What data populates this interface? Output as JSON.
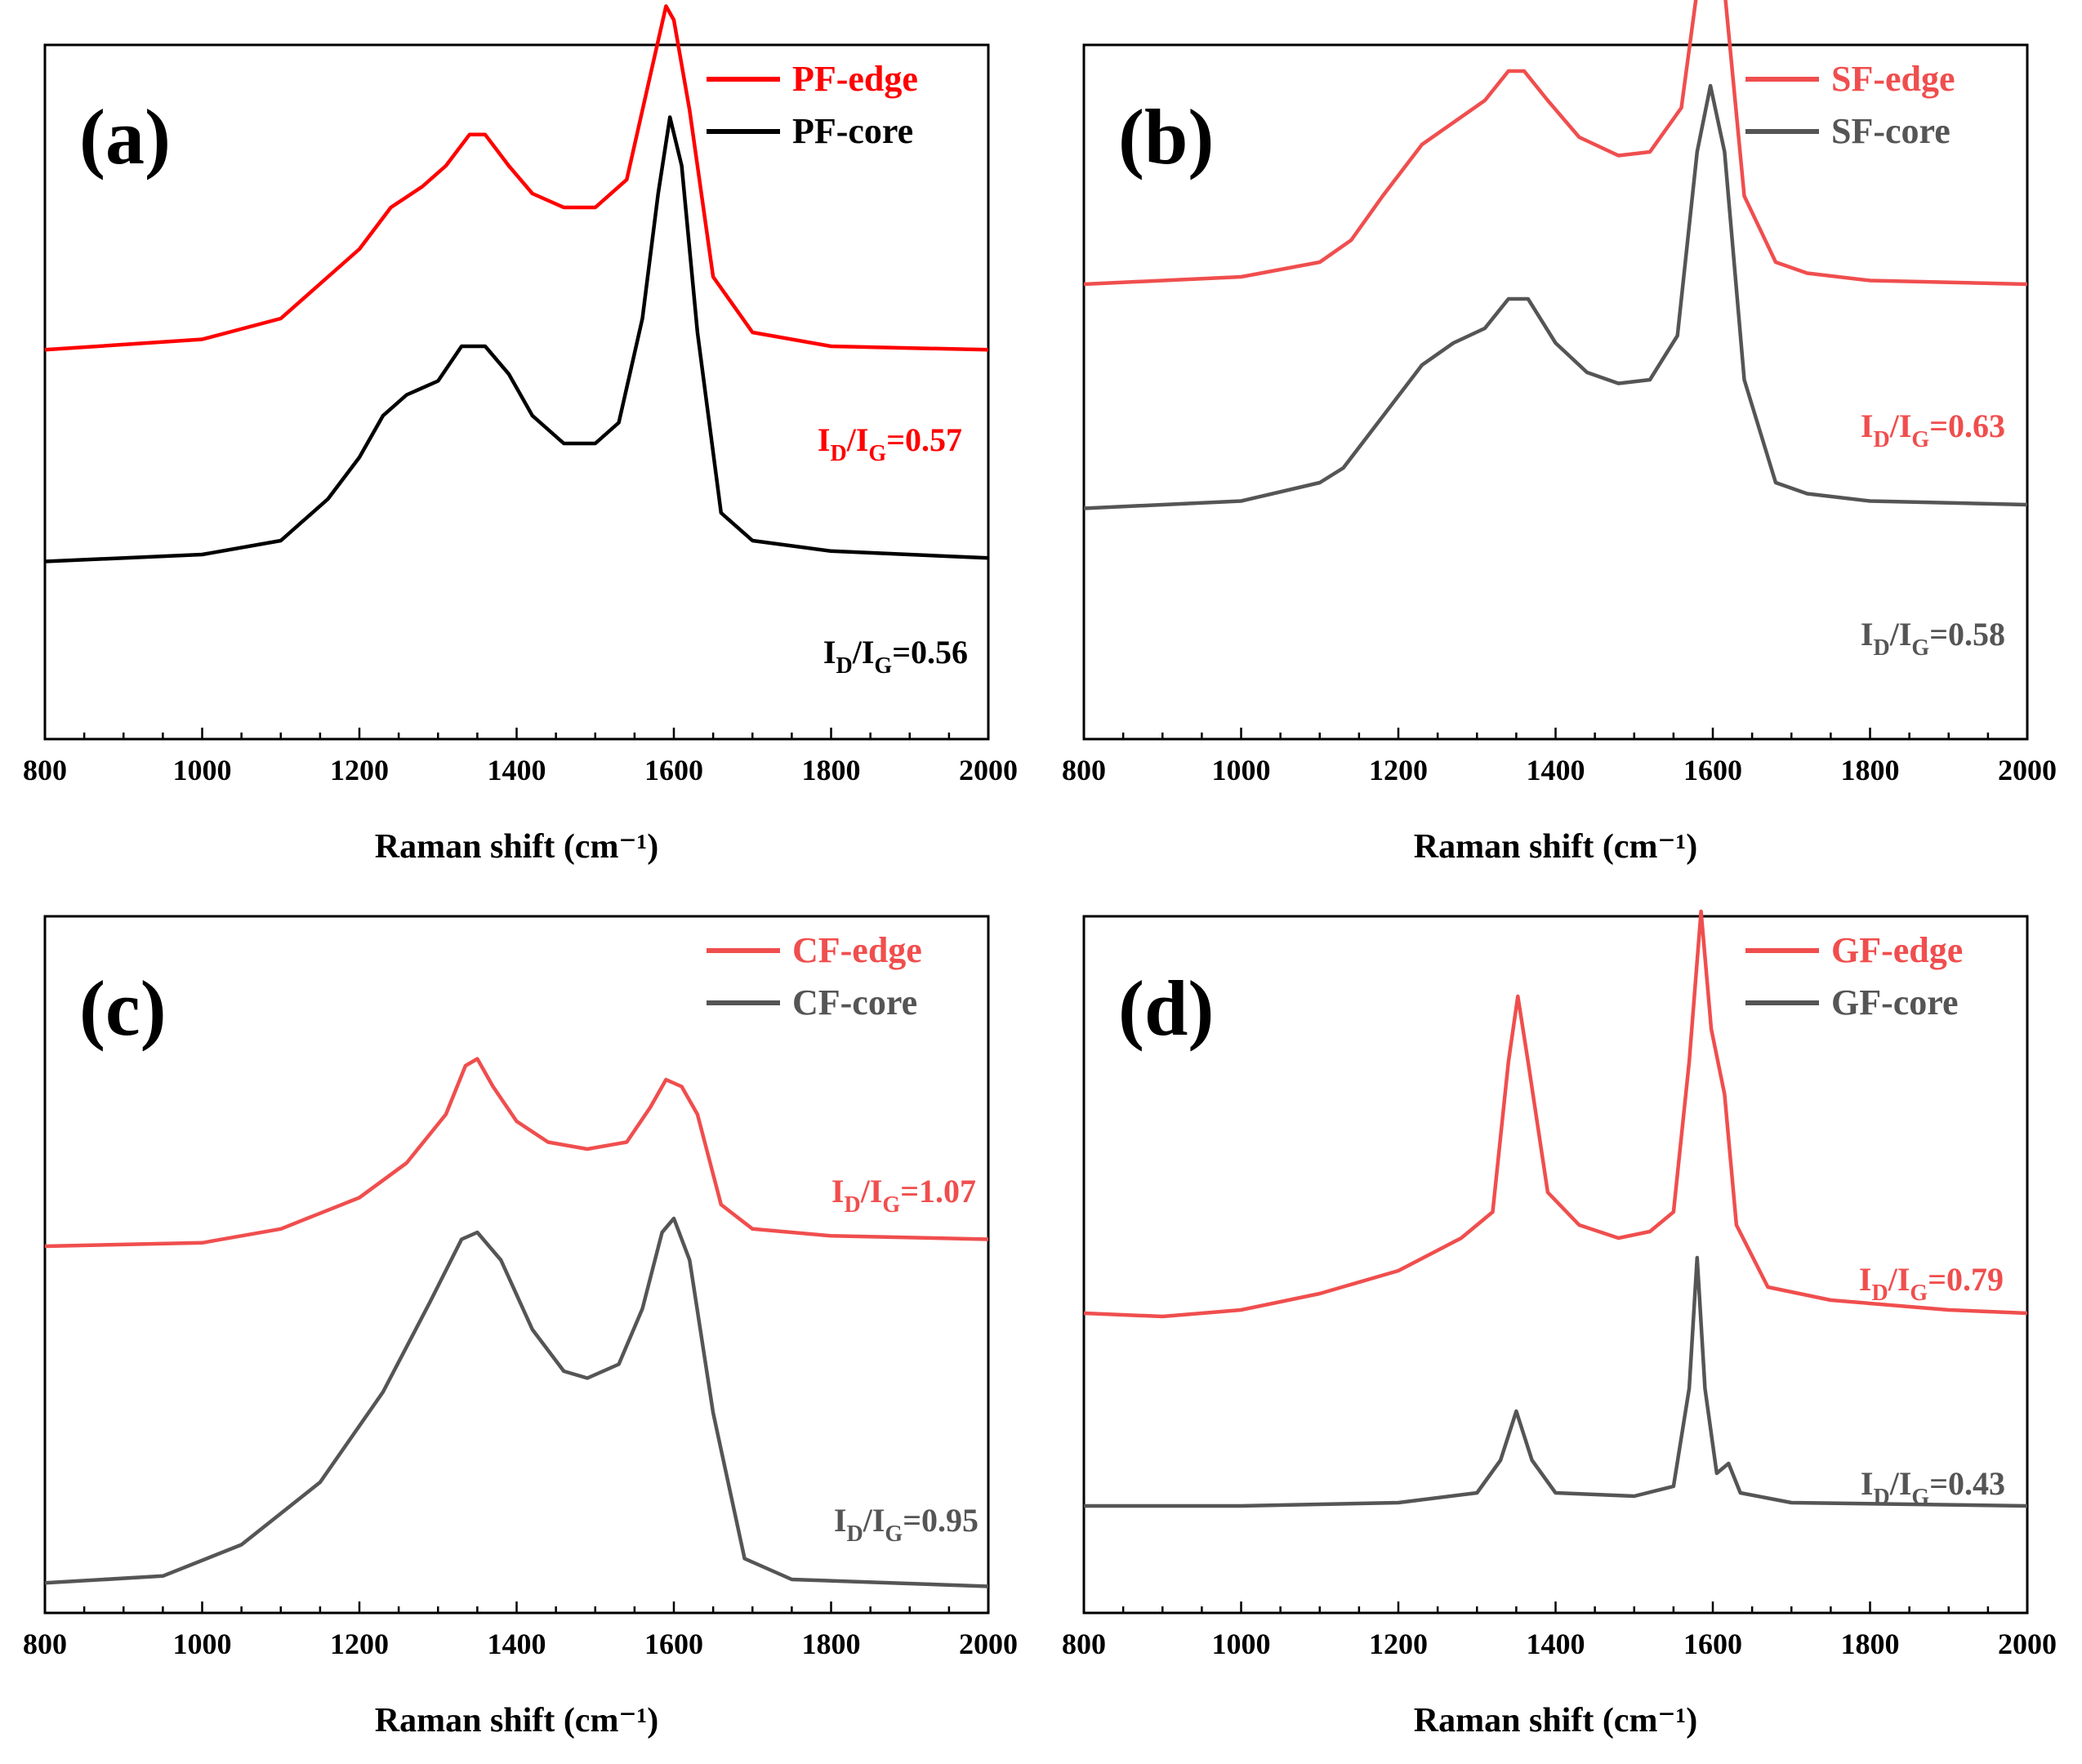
{
  "chart_data": [
    {
      "type": "line",
      "panel_label": "(a)",
      "xlabel": "Raman shift (cm⁻¹)",
      "ylabel": "",
      "xlim": [
        800,
        2000
      ],
      "x_ticks": [
        "800",
        "1000",
        "1200",
        "1400",
        "1600",
        "1800",
        "2000"
      ],
      "y_ticks": [],
      "legend_position": "top-right",
      "series": [
        {
          "name": "PF-edge",
          "color": "#ff0000",
          "annotation": {
            "prefix": "I",
            "sub1": "D",
            "mid": "/I",
            "sub2": "G",
            "value": "=0.57"
          },
          "points": [
            [
              800,
              0.655
            ],
            [
              1000,
              0.67
            ],
            [
              1100,
              0.7
            ],
            [
              1150,
              0.75
            ],
            [
              1200,
              0.8
            ],
            [
              1240,
              0.86
            ],
            [
              1280,
              0.89
            ],
            [
              1310,
              0.92
            ],
            [
              1340,
              0.965
            ],
            [
              1360,
              0.965
            ],
            [
              1390,
              0.92
            ],
            [
              1420,
              0.88
            ],
            [
              1460,
              0.86
            ],
            [
              1500,
              0.86
            ],
            [
              1540,
              0.9
            ],
            [
              1570,
              1.05
            ],
            [
              1590,
              1.15
            ],
            [
              1600,
              1.13
            ],
            [
              1620,
              1.0
            ],
            [
              1650,
              0.76
            ],
            [
              1700,
              0.68
            ],
            [
              1800,
              0.66
            ],
            [
              2000,
              0.655
            ]
          ]
        },
        {
          "name": "PF-core",
          "color": "#000000",
          "annotation": {
            "prefix": "I",
            "sub1": "D",
            "mid": "/I",
            "sub2": "G",
            "value": "=0.56"
          },
          "points": [
            [
              800,
              0.35
            ],
            [
              1000,
              0.36
            ],
            [
              1100,
              0.38
            ],
            [
              1130,
              0.41
            ],
            [
              1160,
              0.44
            ],
            [
              1200,
              0.5
            ],
            [
              1230,
              0.56
            ],
            [
              1260,
              0.59
            ],
            [
              1300,
              0.61
            ],
            [
              1330,
              0.66
            ],
            [
              1360,
              0.66
            ],
            [
              1390,
              0.62
            ],
            [
              1420,
              0.56
            ],
            [
              1460,
              0.52
            ],
            [
              1500,
              0.52
            ],
            [
              1530,
              0.55
            ],
            [
              1560,
              0.7
            ],
            [
              1580,
              0.88
            ],
            [
              1595,
              0.99
            ],
            [
              1610,
              0.92
            ],
            [
              1630,
              0.68
            ],
            [
              1660,
              0.42
            ],
            [
              1700,
              0.38
            ],
            [
              1800,
              0.365
            ],
            [
              2000,
              0.355
            ]
          ]
        }
      ]
    },
    {
      "type": "line",
      "panel_label": "(b)",
      "xlabel": "Raman shift (cm⁻¹)",
      "ylabel": "",
      "xlim": [
        800,
        2000
      ],
      "x_ticks": [
        "800",
        "1000",
        "1200",
        "1400",
        "1600",
        "1800",
        "2000"
      ],
      "y_ticks": [],
      "legend_position": "top-right",
      "series": [
        {
          "name": "SF-edge",
          "color": "#f04e4e",
          "annotation": {
            "prefix": "I",
            "sub1": "D",
            "mid": "/I",
            "sub2": "G",
            "value": "=0.63"
          },
          "points": [
            [
              800,
              0.68
            ],
            [
              1000,
              0.69
            ],
            [
              1100,
              0.71
            ],
            [
              1140,
              0.74
            ],
            [
              1180,
              0.8
            ],
            [
              1230,
              0.87
            ],
            [
              1270,
              0.9
            ],
            [
              1310,
              0.93
            ],
            [
              1340,
              0.97
            ],
            [
              1360,
              0.97
            ],
            [
              1390,
              0.93
            ],
            [
              1430,
              0.88
            ],
            [
              1480,
              0.855
            ],
            [
              1520,
              0.86
            ],
            [
              1560,
              0.92
            ],
            [
              1580,
              1.08
            ],
            [
              1597,
              1.16
            ],
            [
              1615,
              1.08
            ],
            [
              1640,
              0.8
            ],
            [
              1680,
              0.71
            ],
            [
              1720,
              0.695
            ],
            [
              1800,
              0.685
            ],
            [
              2000,
              0.68
            ]
          ]
        },
        {
          "name": "SF-core",
          "color": "#555555",
          "annotation": {
            "prefix": "I",
            "sub1": "D",
            "mid": "/I",
            "sub2": "G",
            "value": "=0.58"
          },
          "points": [
            [
              800,
              0.375
            ],
            [
              1000,
              0.385
            ],
            [
              1100,
              0.41
            ],
            [
              1130,
              0.43
            ],
            [
              1180,
              0.5
            ],
            [
              1230,
              0.57
            ],
            [
              1270,
              0.6
            ],
            [
              1310,
              0.62
            ],
            [
              1340,
              0.66
            ],
            [
              1365,
              0.66
            ],
            [
              1400,
              0.6
            ],
            [
              1440,
              0.56
            ],
            [
              1480,
              0.545
            ],
            [
              1520,
              0.55
            ],
            [
              1555,
              0.61
            ],
            [
              1580,
              0.86
            ],
            [
              1597,
              0.95
            ],
            [
              1615,
              0.86
            ],
            [
              1640,
              0.55
            ],
            [
              1680,
              0.41
            ],
            [
              1720,
              0.395
            ],
            [
              1800,
              0.385
            ],
            [
              2000,
              0.38
            ]
          ]
        }
      ]
    },
    {
      "type": "line",
      "panel_label": "(c)",
      "xlabel": "Raman shift (cm⁻¹)",
      "ylabel": "",
      "xlim": [
        800,
        2000
      ],
      "x_ticks": [
        "800",
        "1000",
        "1200",
        "1400",
        "1600",
        "1800",
        "2000"
      ],
      "y_ticks": [],
      "legend_position": "top-right",
      "series": [
        {
          "name": "CF-edge",
          "color": "#f04e4e",
          "annotation": {
            "prefix": "I",
            "sub1": "D",
            "mid": "/I",
            "sub2": "G",
            "value": "=1.07"
          },
          "points": [
            [
              800,
              0.54
            ],
            [
              1000,
              0.545
            ],
            [
              1100,
              0.565
            ],
            [
              1200,
              0.61
            ],
            [
              1260,
              0.66
            ],
            [
              1310,
              0.73
            ],
            [
              1335,
              0.8
            ],
            [
              1350,
              0.81
            ],
            [
              1370,
              0.77
            ],
            [
              1400,
              0.72
            ],
            [
              1440,
              0.69
            ],
            [
              1490,
              0.68
            ],
            [
              1540,
              0.69
            ],
            [
              1570,
              0.74
            ],
            [
              1590,
              0.78
            ],
            [
              1610,
              0.77
            ],
            [
              1630,
              0.73
            ],
            [
              1660,
              0.6
            ],
            [
              1700,
              0.565
            ],
            [
              1800,
              0.555
            ],
            [
              2000,
              0.55
            ]
          ]
        },
        {
          "name": "CF-core",
          "color": "#555555",
          "annotation": {
            "prefix": "I",
            "sub1": "D",
            "mid": "/I",
            "sub2": "G",
            "value": "=0.95"
          },
          "points": [
            [
              800,
              0.055
            ],
            [
              950,
              0.065
            ],
            [
              1050,
              0.11
            ],
            [
              1150,
              0.2
            ],
            [
              1230,
              0.33
            ],
            [
              1290,
              0.46
            ],
            [
              1330,
              0.55
            ],
            [
              1350,
              0.56
            ],
            [
              1380,
              0.52
            ],
            [
              1420,
              0.42
            ],
            [
              1460,
              0.36
            ],
            [
              1490,
              0.35
            ],
            [
              1530,
              0.37
            ],
            [
              1560,
              0.45
            ],
            [
              1585,
              0.56
            ],
            [
              1600,
              0.58
            ],
            [
              1620,
              0.52
            ],
            [
              1650,
              0.3
            ],
            [
              1690,
              0.09
            ],
            [
              1750,
              0.06
            ],
            [
              2000,
              0.05
            ]
          ]
        }
      ]
    },
    {
      "type": "line",
      "panel_label": "(d)",
      "xlabel": "Raman shift (cm⁻¹)",
      "ylabel": "",
      "xlim": [
        800,
        2000
      ],
      "x_ticks": [
        "800",
        "1000",
        "1200",
        "1400",
        "1600",
        "1800",
        "2000"
      ],
      "y_ticks": [],
      "legend_position": "top-right",
      "series": [
        {
          "name": "GF-edge",
          "color": "#f04e4e",
          "annotation": {
            "prefix": "I",
            "sub1": "D",
            "mid": "/I",
            "sub2": "G",
            "value": "=0.79"
          },
          "points": [
            [
              800,
              0.415
            ],
            [
              900,
              0.41
            ],
            [
              1000,
              0.42
            ],
            [
              1100,
              0.445
            ],
            [
              1200,
              0.48
            ],
            [
              1280,
              0.53
            ],
            [
              1320,
              0.57
            ],
            [
              1340,
              0.8
            ],
            [
              1352,
              0.9
            ],
            [
              1365,
              0.8
            ],
            [
              1390,
              0.6
            ],
            [
              1430,
              0.55
            ],
            [
              1480,
              0.53
            ],
            [
              1520,
              0.54
            ],
            [
              1550,
              0.57
            ],
            [
              1570,
              0.8
            ],
            [
              1585,
              1.03
            ],
            [
              1598,
              0.85
            ],
            [
              1615,
              0.75
            ],
            [
              1630,
              0.55
            ],
            [
              1670,
              0.455
            ],
            [
              1750,
              0.435
            ],
            [
              1900,
              0.42
            ],
            [
              2000,
              0.415
            ]
          ]
        },
        {
          "name": "GF-core",
          "color": "#555555",
          "annotation": {
            "prefix": "I",
            "sub1": "D",
            "mid": "/I",
            "sub2": "G",
            "value": "=0.43"
          },
          "points": [
            [
              800,
              0.12
            ],
            [
              1000,
              0.12
            ],
            [
              1200,
              0.125
            ],
            [
              1300,
              0.14
            ],
            [
              1330,
              0.19
            ],
            [
              1350,
              0.265
            ],
            [
              1370,
              0.19
            ],
            [
              1400,
              0.14
            ],
            [
              1500,
              0.135
            ],
            [
              1550,
              0.15
            ],
            [
              1570,
              0.3
            ],
            [
              1580,
              0.5
            ],
            [
              1590,
              0.3
            ],
            [
              1605,
              0.17
            ],
            [
              1620,
              0.185
            ],
            [
              1635,
              0.14
            ],
            [
              1700,
              0.125
            ],
            [
              2000,
              0.12
            ]
          ]
        }
      ]
    }
  ]
}
